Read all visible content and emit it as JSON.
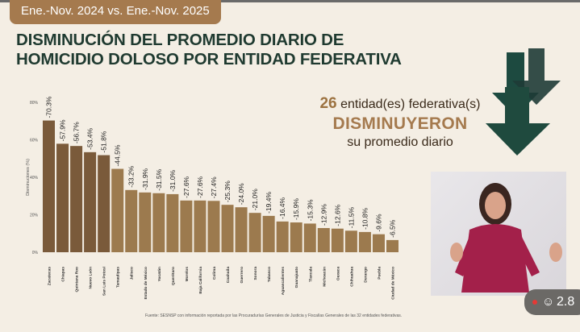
{
  "header": {
    "period": "Ene.-Nov. 2024 vs. Ene.-Nov. 2025",
    "title_line1": "DISMINUCIÓN DEL PROMEDIO DIARIO DE",
    "title_line2": "HOMICIDIO DOLOSO POR ENTIDAD FEDERATIVA"
  },
  "stat": {
    "count": "26",
    "line1": "entidad(es) federativa(s)",
    "line2": "DISMINUYERON",
    "line3": "su promedio diario"
  },
  "source": "Fuente: SESNSP con información reportada por las Procuradurías Generales de Justicia y Fiscalías Generales de las 32 entidades federativas.",
  "live_badge": {
    "icon": "person-icon",
    "viewers": "2.8"
  },
  "colors": {
    "bar_dark": "#7a5a3a",
    "bar_light": "#9c7a4e",
    "title": "#1f3a30",
    "accent": "#a57a4e"
  },
  "chart_data": {
    "type": "bar",
    "ylabel": "Disminuciones (%)",
    "ylim": [
      0,
      80
    ],
    "yticks": [
      "0%",
      "20%",
      "40%",
      "60%",
      "80%"
    ],
    "grid": false,
    "categories": [
      "Zacatecas",
      "Chiapas",
      "Quintana Roo",
      "Nuevo León",
      "San Luis Potosí",
      "Tamaulipas",
      "Jalisco",
      "Estado de México",
      "Yucatán",
      "Querétaro",
      "Morelos",
      "Baja California",
      "Colima",
      "Coahuila",
      "Guerrero",
      "Sonora",
      "Tabasco",
      "Aguascalientes",
      "Guanajuato",
      "Tlaxcala",
      "Michoacán",
      "Oaxaca",
      "Chihuahua",
      "Durango",
      "Puebla",
      "Ciudad de México"
    ],
    "values": [
      70.3,
      57.9,
      56.7,
      53.4,
      51.8,
      44.5,
      33.2,
      31.9,
      31.5,
      31.0,
      27.6,
      27.6,
      27.4,
      25.3,
      24.0,
      21.0,
      19.4,
      16.4,
      15.9,
      15.3,
      12.9,
      12.6,
      11.5,
      10.8,
      9.6,
      6.5
    ],
    "labels": [
      "-70.3%",
      "-57.9%",
      "-56.7%",
      "-53.4%",
      "-51.8%",
      "-44.5%",
      "-33.2%",
      "-31.9%",
      "-31.5%",
      "-31.0%",
      "-27.6%",
      "-27.6%",
      "-27.4%",
      "-25.3%",
      "-24.0%",
      "-21.0%",
      "-19.4%",
      "-16.4%",
      "-15.9%",
      "-15.3%",
      "-12.9%",
      "-12.6%",
      "-11.5%",
      "-10.8%",
      "-9.6%",
      "-6.5%"
    ],
    "highlighted_top": 5
  }
}
